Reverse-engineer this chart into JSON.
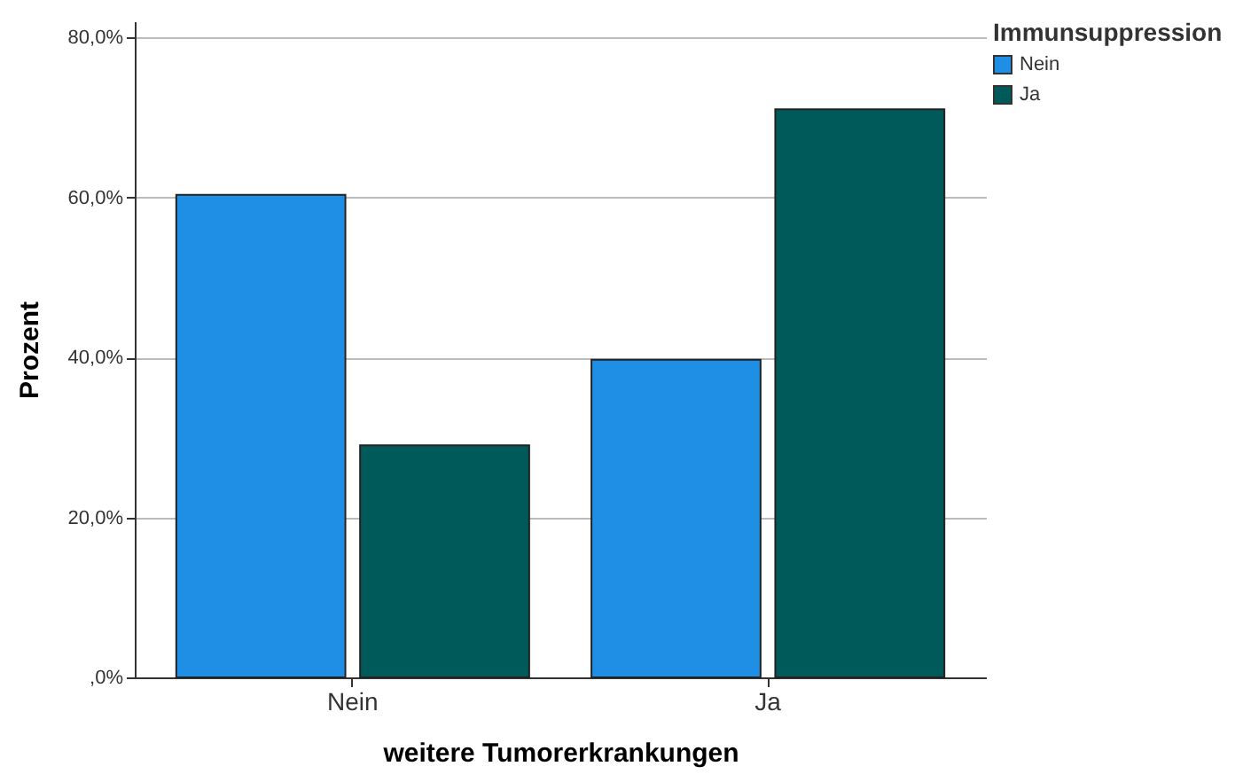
{
  "chart_data": {
    "type": "bar",
    "xlabel": "weitere Tumorerkrankungen",
    "ylabel": "Prozent",
    "legend_title": "Immunsuppression",
    "categories": [
      "Nein",
      "Ja"
    ],
    "series": [
      {
        "name": "Nein",
        "color": "#1f8fe6",
        "values": [
          60.3,
          39.7
        ]
      },
      {
        "name": "Ja",
        "color": "#005a5a",
        "values": [
          29.0,
          71.0
        ]
      }
    ],
    "ylim": [
      0,
      82
    ],
    "yticks": [
      {
        "value": 0,
        "label": ",0%"
      },
      {
        "value": 20,
        "label": "20,0%"
      },
      {
        "value": 40,
        "label": "40,0%"
      },
      {
        "value": 60,
        "label": "60,0%"
      },
      {
        "value": 80,
        "label": "80,0%"
      }
    ],
    "grid": "y",
    "legend": "top right"
  }
}
